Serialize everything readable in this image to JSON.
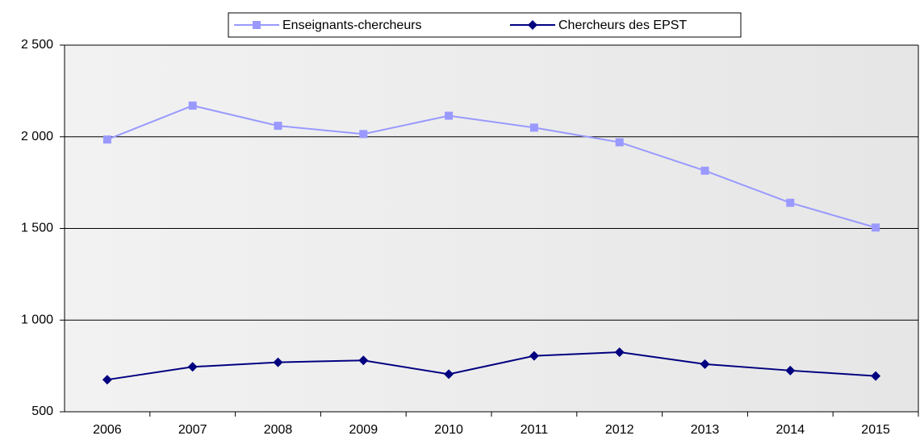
{
  "chart_data": {
    "type": "line",
    "categories": [
      "2006",
      "2007",
      "2008",
      "2009",
      "2010",
      "2011",
      "2012",
      "2013",
      "2014",
      "2015"
    ],
    "series": [
      {
        "name": "Enseignants-chercheurs",
        "color": "#9999ff",
        "marker": "square",
        "values": [
          1985,
          2170,
          2060,
          2015,
          2115,
          2050,
          1970,
          1815,
          1640,
          1505
        ]
      },
      {
        "name": "Chercheurs des EPST",
        "color": "#000080",
        "marker": "diamond",
        "values": [
          675,
          745,
          770,
          780,
          705,
          805,
          825,
          760,
          725,
          695
        ]
      }
    ],
    "ylim": [
      500,
      2500
    ],
    "yticks": [
      500,
      {
        "value": 1000,
        "label": "1 000"
      },
      {
        "value": 1500,
        "label": "1 500"
      },
      {
        "value": 2000,
        "label": "2 000"
      },
      {
        "value": 2500,
        "label": "2 500"
      }
    ],
    "grid": true,
    "legend": "top"
  }
}
